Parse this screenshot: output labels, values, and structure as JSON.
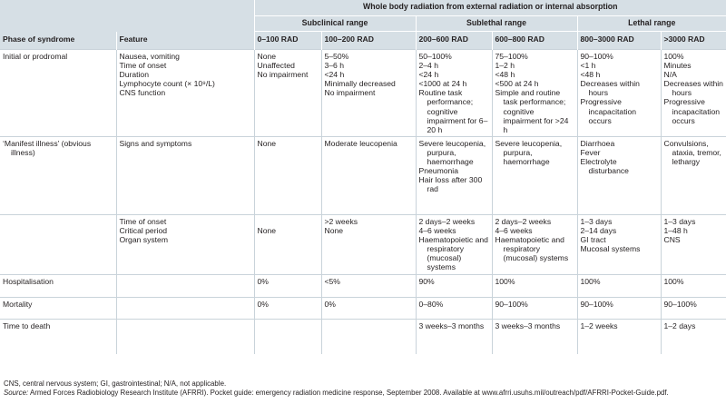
{
  "header": {
    "main_title": "Whole body radiation from external radiation or internal absorption",
    "groups": [
      "Subclinical range",
      "Sublethal range",
      "Lethal range"
    ],
    "columns": [
      "Phase of syndrome",
      "Feature",
      "0–100 RAD",
      "100–200 RAD",
      "200–600 RAD",
      "600–800 RAD",
      "800–3000 RAD",
      ">3000 RAD"
    ]
  },
  "rows": [
    {
      "phase": "Initial or prodromal",
      "feature": [
        "Nausea, vomiting",
        "Time of onset",
        "Duration",
        "Lymphocyte count (× 10⁹/L)",
        "CNS function"
      ],
      "c1": [
        "None",
        "Unaffected",
        "No impairment"
      ],
      "c2": [
        "5–50%",
        "3–6 h",
        "<24 h",
        "Minimally decreased",
        "No impairment"
      ],
      "c3": [
        "50–100%",
        "2–4 h",
        "<24 h",
        "<1000 at 24 h",
        "Routine task performance; cognitive impairment for 6–20 h"
      ],
      "c4": [
        "75–100%",
        "1–2 h",
        "<48 h",
        "<500 at 24 h",
        "Simple and routine task performance; cognitive impairment for >24 h"
      ],
      "c5": [
        "90–100%",
        "<1 h",
        "<48 h",
        "Decreases within hours",
        "Progressive incapacitation occurs"
      ],
      "c6": [
        "100%",
        "Minutes",
        "N/A",
        "Decreases within hours",
        "Progressive incapacitation occurs"
      ]
    },
    {
      "phase": "‘Manifest illness’ (obvious illness)",
      "feature": [
        "Signs and symptoms"
      ],
      "c1": [
        "None"
      ],
      "c2": [
        "Moderate leucopenia"
      ],
      "c3": [
        "Severe leucopenia, purpura, haemorrhage",
        "Pneumonia",
        "Hair loss after 300 rad"
      ],
      "c4": [
        "Severe leucopenia, purpura, haemorrhage"
      ],
      "c5": [
        "Diarrhoea",
        "Fever",
        "Electrolyte disturbance"
      ],
      "c6": [
        "Convulsions, ataxia, tremor, lethargy"
      ]
    },
    {
      "phase": "",
      "feature": [
        "Time of onset",
        "Critical period",
        "Organ system"
      ],
      "c1": [
        "",
        "None"
      ],
      "c2": [
        ">2 weeks",
        "None"
      ],
      "c3": [
        "2 days–2 weeks",
        "4–6 weeks",
        "Haematopoietic and respiratory (mucosal) systems"
      ],
      "c4": [
        "2 days–2 weeks",
        "4–6 weeks",
        "Haematopoietic and respiratory (mucosal) systems"
      ],
      "c5": [
        "1–3 days",
        "2–14 days",
        "GI tract",
        "Mucosal systems"
      ],
      "c6": [
        "1–3 days",
        "1–48 h",
        "CNS"
      ]
    },
    {
      "phase": "Hospitalisation",
      "feature": [],
      "c1": [
        "0%"
      ],
      "c2": [
        "<5%"
      ],
      "c3": [
        "90%"
      ],
      "c4": [
        "100%"
      ],
      "c5": [
        "100%"
      ],
      "c6": [
        "100%"
      ]
    },
    {
      "phase": "Mortality",
      "feature": [],
      "c1": [
        "0%"
      ],
      "c2": [
        "0%"
      ],
      "c3": [
        "0–80%"
      ],
      "c4": [
        "90–100%"
      ],
      "c5": [
        "90–100%"
      ],
      "c6": [
        "90–100%"
      ]
    },
    {
      "phase": "Time to death",
      "feature": [],
      "c1": [],
      "c2": [],
      "c3": [
        "3 weeks–3 months"
      ],
      "c4": [
        "3 weeks–3 months"
      ],
      "c5": [
        "1–2 weeks"
      ],
      "c6": [
        "1–2 days"
      ]
    }
  ],
  "footer": {
    "abbreviations": "CNS, central nervous system; GI, gastrointestinal; N/A, not applicable.",
    "source_label": "Source:",
    "source_text": " Armed Forces Radiobiology Research Institute (AFRRI). Pocket guide: emergency radiation medicine response, September 2008. Available at www.afrri.usuhs.mil/outreach/pdf/AFRRI-Pocket-Guide.pdf."
  }
}
